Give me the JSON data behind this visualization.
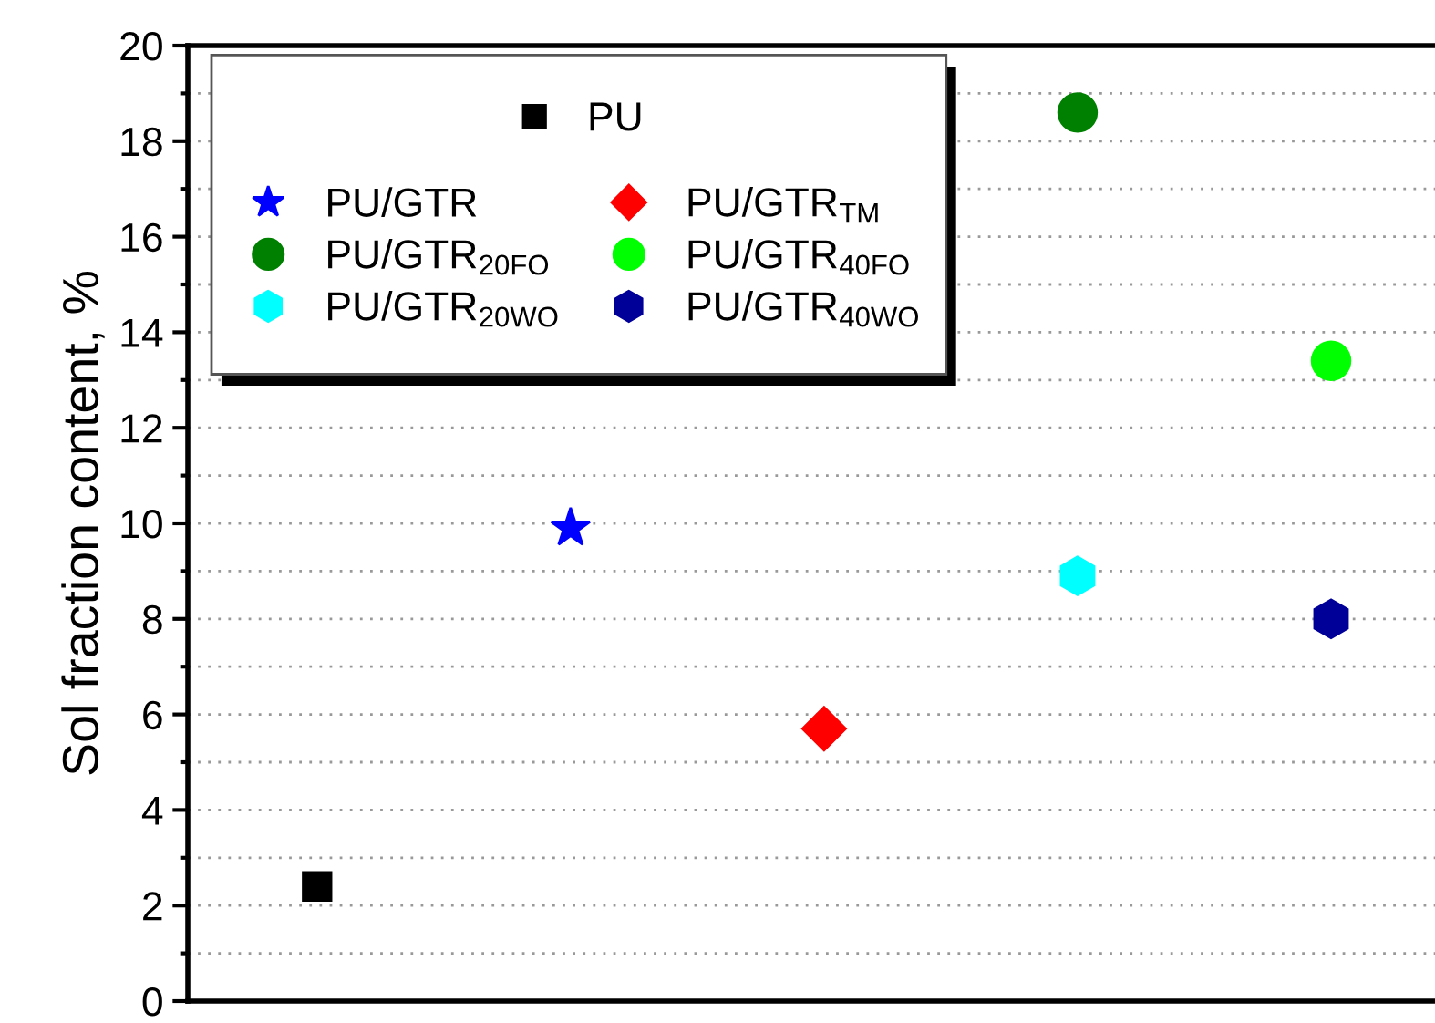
{
  "chart_data": {
    "type": "scatter",
    "ylabel": "Sol fraction content, %",
    "categories": [
      null,
      null,
      null,
      null,
      null
    ],
    "series": [
      {
        "name": "PU",
        "color": "#000000",
        "marker": "square",
        "values": [
          2.4,
          null,
          null,
          null,
          null
        ]
      },
      {
        "name": "PU/GTR",
        "color": "#0000ff",
        "marker": "star",
        "values": [
          null,
          9.9,
          null,
          null,
          null
        ]
      },
      {
        "name": "PU/GTR$_{TM}$",
        "color": "#ff0000",
        "marker": "diamond",
        "values": [
          null,
          null,
          5.7,
          null,
          null
        ]
      },
      {
        "name": "PU/GTR$_{20FO}$",
        "color": "#008000",
        "marker": "circle",
        "values": [
          null,
          null,
          null,
          18.6,
          null
        ]
      },
      {
        "name": "PU/GTR$_{40FO}$",
        "color": "#00ff00",
        "marker": "circle",
        "values": [
          null,
          null,
          null,
          null,
          13.4
        ]
      },
      {
        "name": "PU/GTR$_{20WO}$",
        "color": "#00ffff",
        "values": [
          null,
          null,
          null,
          8.9,
          null
        ]
      },
      {
        "name": "PU/GTR$_{40WO}$",
        "color": "#000099",
        "values": [
          null,
          null,
          null,
          null,
          8.0
        ]
      }
    ],
    "ylim": [
      0,
      20
    ],
    "yticks": [
      0,
      {
        "value": 1,
        "label": null
      },
      2,
      {
        "value": 3,
        "label": null
      },
      4,
      {
        "value": 5,
        "label": null
      },
      6,
      {
        "value": 7,
        "label": null
      },
      8,
      {
        "value": 9,
        "label": null
      },
      10,
      {
        "value": 11,
        "label": null
      },
      12,
      {
        "value": 13,
        "label": null
      },
      14,
      {
        "value": 15,
        "label": null
      },
      16,
      {
        "value": 17,
        "label": null
      },
      18,
      {
        "value": 19,
        "label": null
      },
      20
    ],
    "grid": "y",
    "legend": "top left",
    "tick_labels": "y"
  }
}
